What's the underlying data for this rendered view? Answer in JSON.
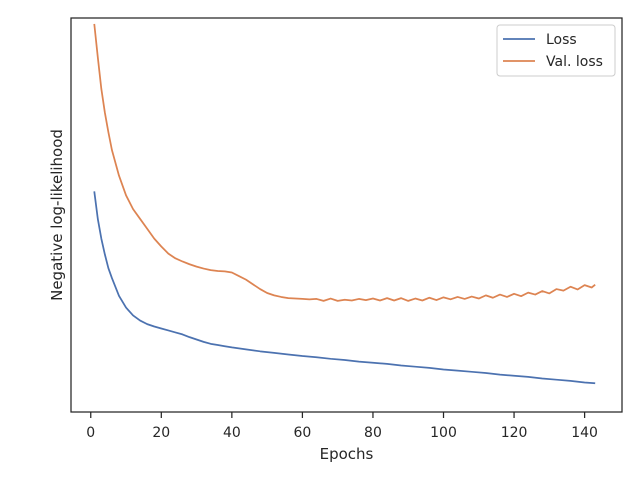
{
  "chart_data": {
    "type": "line",
    "title": "",
    "xlabel": "Epochs",
    "ylabel": "Negative log-likelihood",
    "xlim": [
      -5.6,
      150.6
    ],
    "ylim": [
      0.0,
      1.0
    ],
    "x_ticks": [
      0,
      20,
      40,
      60,
      80,
      100,
      120,
      140
    ],
    "y_ticks_shown": false,
    "grid": false,
    "legend_position": "top-right",
    "series": [
      {
        "name": "Loss",
        "color": "#4c72b0",
        "points": [
          [
            1,
            0.56
          ],
          [
            2,
            0.49
          ],
          [
            3,
            0.44
          ],
          [
            4,
            0.4
          ],
          [
            5,
            0.365
          ],
          [
            6,
            0.34
          ],
          [
            8,
            0.295
          ],
          [
            10,
            0.265
          ],
          [
            12,
            0.245
          ],
          [
            14,
            0.232
          ],
          [
            16,
            0.223
          ],
          [
            18,
            0.217
          ],
          [
            20,
            0.212
          ],
          [
            22,
            0.207
          ],
          [
            24,
            0.202
          ],
          [
            26,
            0.197
          ],
          [
            28,
            0.19
          ],
          [
            30,
            0.184
          ],
          [
            32,
            0.178
          ],
          [
            34,
            0.173
          ],
          [
            36,
            0.17
          ],
          [
            38,
            0.167
          ],
          [
            40,
            0.164
          ],
          [
            44,
            0.159
          ],
          [
            48,
            0.154
          ],
          [
            52,
            0.15
          ],
          [
            56,
            0.146
          ],
          [
            60,
            0.142
          ],
          [
            64,
            0.139
          ],
          [
            68,
            0.135
          ],
          [
            72,
            0.132
          ],
          [
            76,
            0.128
          ],
          [
            80,
            0.125
          ],
          [
            84,
            0.122
          ],
          [
            88,
            0.118
          ],
          [
            92,
            0.115
          ],
          [
            96,
            0.112
          ],
          [
            100,
            0.108
          ],
          [
            104,
            0.105
          ],
          [
            108,
            0.102
          ],
          [
            112,
            0.099
          ],
          [
            116,
            0.095
          ],
          [
            120,
            0.092
          ],
          [
            124,
            0.089
          ],
          [
            128,
            0.085
          ],
          [
            132,
            0.082
          ],
          [
            136,
            0.079
          ],
          [
            140,
            0.075
          ],
          [
            143,
            0.073
          ]
        ]
      },
      {
        "name": "Val. loss",
        "color": "#dd8452",
        "points": [
          [
            1,
            0.985
          ],
          [
            2,
            0.9
          ],
          [
            3,
            0.82
          ],
          [
            4,
            0.76
          ],
          [
            5,
            0.71
          ],
          [
            6,
            0.665
          ],
          [
            8,
            0.6
          ],
          [
            10,
            0.55
          ],
          [
            12,
            0.515
          ],
          [
            14,
            0.49
          ],
          [
            16,
            0.465
          ],
          [
            18,
            0.44
          ],
          [
            20,
            0.42
          ],
          [
            22,
            0.402
          ],
          [
            24,
            0.39
          ],
          [
            26,
            0.382
          ],
          [
            28,
            0.375
          ],
          [
            30,
            0.369
          ],
          [
            32,
            0.364
          ],
          [
            34,
            0.36
          ],
          [
            36,
            0.358
          ],
          [
            38,
            0.357
          ],
          [
            40,
            0.354
          ],
          [
            42,
            0.345
          ],
          [
            44,
            0.336
          ],
          [
            46,
            0.324
          ],
          [
            48,
            0.312
          ],
          [
            50,
            0.302
          ],
          [
            52,
            0.296
          ],
          [
            54,
            0.292
          ],
          [
            56,
            0.289
          ],
          [
            58,
            0.288
          ],
          [
            60,
            0.287
          ],
          [
            62,
            0.286
          ],
          [
            64,
            0.287
          ],
          [
            66,
            0.282
          ],
          [
            68,
            0.288
          ],
          [
            70,
            0.282
          ],
          [
            72,
            0.285
          ],
          [
            74,
            0.283
          ],
          [
            76,
            0.287
          ],
          [
            78,
            0.284
          ],
          [
            80,
            0.288
          ],
          [
            82,
            0.283
          ],
          [
            84,
            0.289
          ],
          [
            86,
            0.283
          ],
          [
            88,
            0.289
          ],
          [
            90,
            0.282
          ],
          [
            92,
            0.288
          ],
          [
            94,
            0.283
          ],
          [
            96,
            0.29
          ],
          [
            98,
            0.284
          ],
          [
            100,
            0.291
          ],
          [
            102,
            0.286
          ],
          [
            104,
            0.292
          ],
          [
            106,
            0.287
          ],
          [
            108,
            0.293
          ],
          [
            110,
            0.288
          ],
          [
            112,
            0.296
          ],
          [
            114,
            0.29
          ],
          [
            116,
            0.298
          ],
          [
            118,
            0.292
          ],
          [
            120,
            0.3
          ],
          [
            122,
            0.294
          ],
          [
            124,
            0.303
          ],
          [
            126,
            0.298
          ],
          [
            128,
            0.307
          ],
          [
            130,
            0.301
          ],
          [
            132,
            0.312
          ],
          [
            134,
            0.308
          ],
          [
            136,
            0.318
          ],
          [
            138,
            0.311
          ],
          [
            140,
            0.322
          ],
          [
            142,
            0.316
          ],
          [
            143,
            0.323
          ]
        ]
      }
    ]
  }
}
